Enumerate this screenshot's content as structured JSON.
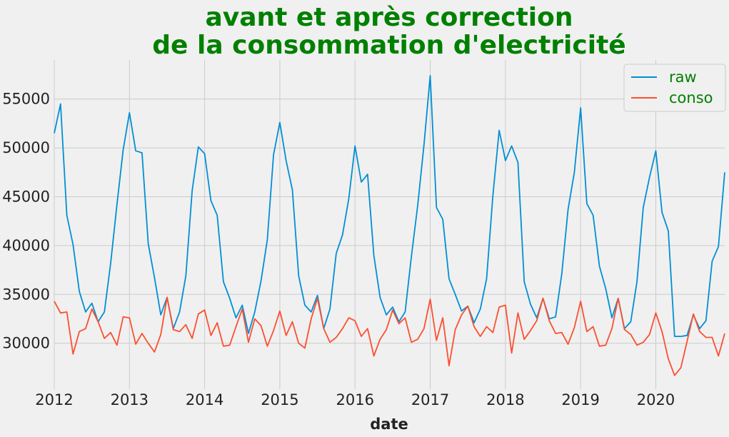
{
  "chart_data": {
    "type": "line",
    "title_lines": [
      "avant et après correction",
      "de la consommation d'electricité"
    ],
    "xlabel": "date",
    "ylabel": "",
    "x_start": "2012-01",
    "x_end": "2020-12",
    "xlim": [
      "2012-01",
      "2020-12"
    ],
    "ylim": [
      25300,
      59000
    ],
    "x_ticks": [
      "2012",
      "2013",
      "2014",
      "2015",
      "2016",
      "2017",
      "2018",
      "2019",
      "2020"
    ],
    "y_ticks": [
      30000,
      35000,
      40000,
      45000,
      50000,
      55000
    ],
    "grid": true,
    "legend_position": "top-right",
    "series": [
      {
        "name": "raw",
        "color": "#008fd5",
        "values": [
          51500,
          54500,
          43100,
          40100,
          35300,
          33200,
          34100,
          32200,
          33200,
          38200,
          44200,
          49800,
          53600,
          49700,
          49500,
          40200,
          36700,
          32900,
          34700,
          31500,
          33200,
          36900,
          45600,
          50100,
          49400,
          44600,
          43100,
          36300,
          34600,
          32600,
          33900,
          31000,
          33200,
          36400,
          40600,
          49300,
          52600,
          48700,
          45700,
          36900,
          33900,
          33200,
          34900,
          31500,
          33500,
          39200,
          41100,
          44800,
          50200,
          46500,
          47300,
          39000,
          34700,
          32900,
          33700,
          32200,
          33200,
          38900,
          44100,
          50300,
          57400,
          43900,
          42700,
          36600,
          35000,
          33300,
          33800,
          32100,
          33500,
          36600,
          45100,
          51800,
          48700,
          50200,
          48500,
          36300,
          34000,
          32600,
          34600,
          32500,
          32700,
          37100,
          43700,
          47500,
          54100,
          44300,
          43100,
          37900,
          35600,
          32600,
          34600,
          31500,
          32200,
          36300,
          43900,
          47000,
          49700,
          43400,
          41500,
          30700,
          30700,
          30800,
          32900,
          31500,
          32300,
          38400,
          39900,
          47500
        ]
      },
      {
        "name": "conso",
        "color": "#fc4f30",
        "values": [
          34300,
          33100,
          33200,
          28900,
          31200,
          31500,
          33500,
          32200,
          30500,
          31100,
          29800,
          32700,
          32600,
          29900,
          31000,
          30000,
          29100,
          30900,
          34700,
          31400,
          31200,
          31900,
          30500,
          33000,
          33400,
          30800,
          32100,
          29700,
          29800,
          31700,
          33500,
          30100,
          32500,
          31800,
          29700,
          31300,
          33300,
          30800,
          32200,
          30000,
          29500,
          32500,
          34600,
          31500,
          30100,
          30600,
          31500,
          32600,
          32300,
          30700,
          31500,
          28700,
          30400,
          31400,
          33400,
          32000,
          32600,
          30100,
          30400,
          31500,
          34500,
          30300,
          32600,
          27700,
          31400,
          32900,
          33800,
          31700,
          30700,
          31700,
          31100,
          33700,
          33900,
          29000,
          33100,
          30400,
          31300,
          32300,
          34600,
          32300,
          31000,
          31100,
          29900,
          31600,
          34300,
          31200,
          31700,
          29700,
          29800,
          31500,
          34600,
          31400,
          30900,
          29800,
          30100,
          30900,
          33100,
          31200,
          28400,
          26700,
          27500,
          30200,
          33000,
          31200,
          30600,
          30600,
          28700,
          31000
        ]
      }
    ]
  }
}
